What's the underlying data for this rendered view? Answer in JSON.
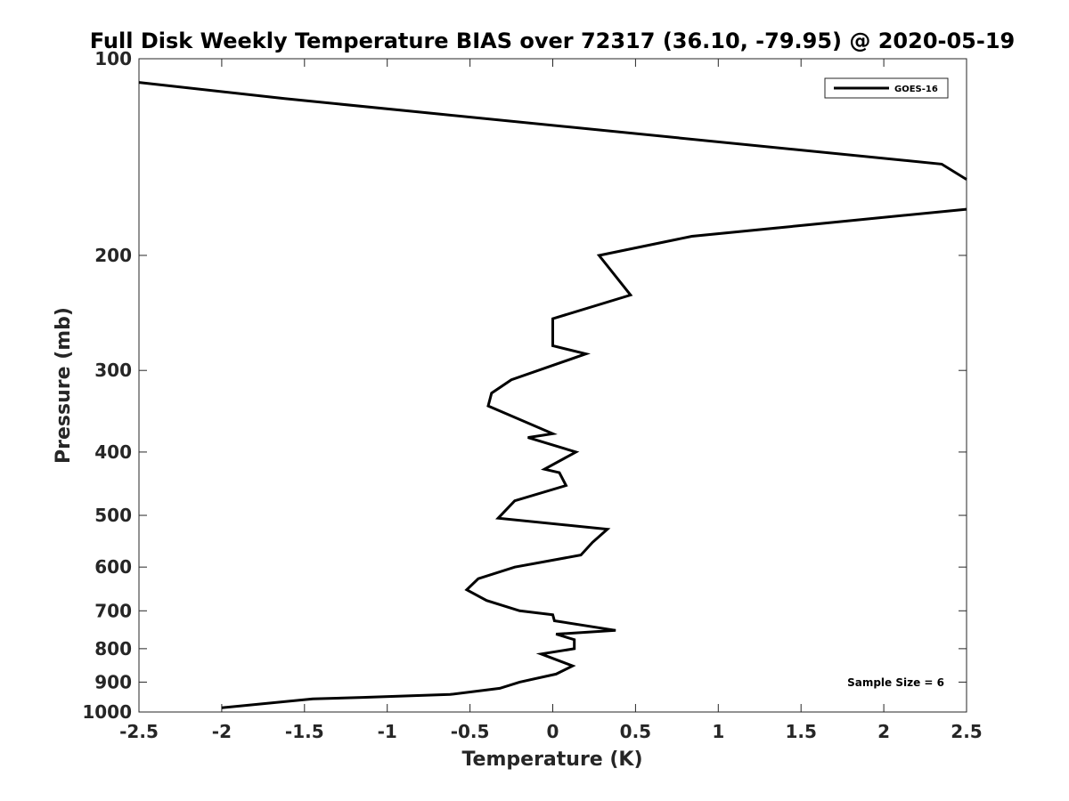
{
  "chart_data": {
    "type": "line",
    "title": "Full Disk Weekly Temperature BIAS over 72317 (36.10, -79.95) @ 2020-05-19",
    "xlabel": "Temperature (K)",
    "ylabel": "Pressure (mb)",
    "xlim": [
      -2.5,
      2.5
    ],
    "ylim": [
      100,
      1000
    ],
    "y_scale": "log",
    "y_reversed": true,
    "x_ticks": [
      "-2.5",
      "-2",
      "-1.5",
      "-1",
      "-0.5",
      "0",
      "0.5",
      "1",
      "1.5",
      "2",
      "2.5"
    ],
    "x_tick_values": [
      -2.5,
      -2,
      -1.5,
      -1,
      -0.5,
      0,
      0.5,
      1,
      1.5,
      2,
      2.5
    ],
    "y_ticks": [
      "100",
      "200",
      "300",
      "400",
      "500",
      "600",
      "700",
      "800",
      "900",
      "1000"
    ],
    "y_tick_values": [
      100,
      200,
      300,
      400,
      500,
      600,
      700,
      800,
      900,
      1000
    ],
    "grid": false,
    "legend_position": "top-right",
    "annotation": "Sample Size = 6",
    "series": [
      {
        "name": "GOES-16",
        "color": "#000000",
        "segments": [
          {
            "x": [
              -2.5,
              -1.62,
              2.35,
              2.5
            ],
            "y": [
              108.7,
              115.1,
              145.0,
              153.0
            ]
          },
          {
            "x": [
              2.5,
              0.84,
              0.28,
              0.47,
              0.0,
              0.0,
              0.2,
              -0.25,
              -0.37,
              -0.39,
              0.0,
              -0.15,
              0.14,
              -0.05,
              0.04,
              0.08,
              -0.23,
              -0.33,
              0.33,
              0.24,
              0.17,
              -0.23,
              -0.45,
              -0.52,
              -0.4,
              -0.2,
              0.0,
              0.01,
              0.38,
              0.02,
              0.13,
              0.13,
              -0.07,
              0.12,
              0.02,
              -0.2,
              -0.32,
              -0.62,
              -1.15,
              -1.45,
              -2.0
            ],
            "y": [
              170,
              187,
              200,
              230,
              250,
              275,
              283,
              310,
              325,
              340,
              375,
              380,
              400,
              425,
              430,
              450,
              475,
              505,
              525,
              550,
              575,
              600,
              625,
              650,
              675,
              700,
              710,
              725,
              750,
              760,
              775,
              800,
              815,
              850,
              875,
              900,
              920,
              940,
              950,
              955,
              985
            ]
          }
        ]
      }
    ]
  }
}
